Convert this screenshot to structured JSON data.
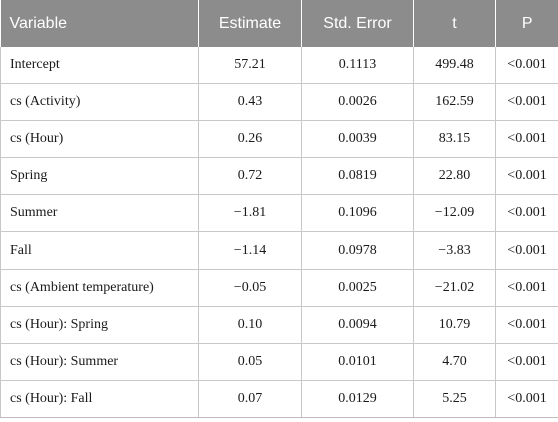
{
  "table": {
    "headers": [
      "Variable",
      "Estimate",
      "Std. Error",
      "t",
      "P"
    ],
    "rows": [
      [
        "Intercept",
        "57.21",
        "0.1113",
        "499.48",
        "<0.001"
      ],
      [
        "cs (Activity)",
        "0.43",
        "0.0026",
        "162.59",
        "<0.001"
      ],
      [
        "cs (Hour)",
        "0.26",
        "0.0039",
        "83.15",
        "<0.001"
      ],
      [
        "Spring",
        "0.72",
        "0.0819",
        "22.80",
        "<0.001"
      ],
      [
        "Summer",
        "−1.81",
        "0.1096",
        "−12.09",
        "<0.001"
      ],
      [
        "Fall",
        "−1.14",
        "0.0978",
        "−3.83",
        "<0.001"
      ],
      [
        "cs (Ambient temperature)",
        "−0.05",
        "0.0025",
        "−21.02",
        "<0.001"
      ],
      [
        "cs (Hour): Spring",
        "0.10",
        "0.0094",
        "10.79",
        "<0.001"
      ],
      [
        "cs (Hour): Summer",
        "0.05",
        "0.0101",
        "4.70",
        "<0.001"
      ],
      [
        "cs (Hour): Fall",
        "0.07",
        "0.0129",
        "5.25",
        "<0.001"
      ]
    ]
  }
}
